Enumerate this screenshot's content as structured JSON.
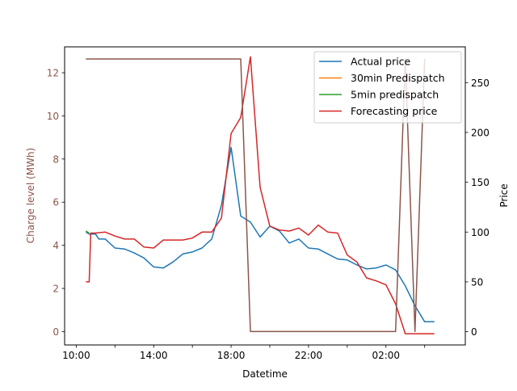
{
  "chart_data": {
    "type": "line",
    "xlabel": "Datetime",
    "ylabel_left": "Charge level (MWh)",
    "ylabel_right": "Price",
    "x_unit": "hours since 00:00 (day 1)",
    "x_ticks": [
      {
        "x": 10,
        "label": "10:00"
      },
      {
        "x": 12,
        "label": ""
      },
      {
        "x": 14,
        "label": "14:00"
      },
      {
        "x": 16,
        "label": ""
      },
      {
        "x": 18,
        "label": "18:00"
      },
      {
        "x": 20,
        "label": ""
      },
      {
        "x": 22,
        "label": "22:00"
      },
      {
        "x": 24,
        "label": ""
      },
      {
        "x": 26,
        "label": "02:00"
      },
      {
        "x": 28,
        "label": ""
      }
    ],
    "xlim": [
      9.4,
      30.1
    ],
    "ylim_left": [
      -0.62,
      13.2
    ],
    "ylim_right": [
      -13.3,
      285.9
    ],
    "left_ticks": [
      0,
      2,
      4,
      6,
      8,
      10,
      12
    ],
    "right_ticks": [
      0,
      50,
      100,
      150,
      200,
      250
    ],
    "legend_position": "top-right",
    "legend": [
      "Actual price",
      "30min Predispatch",
      "5min predispatch",
      "Forecasting price"
    ],
    "colors": {
      "actual": "#1f77b4",
      "pd30": "#ff7f0e",
      "pd5": "#2ca02c",
      "forecast": "#d62728",
      "charge": "#8c564b",
      "left_axis_text": "#8c564b"
    },
    "series": [
      {
        "name": "Actual price",
        "axis": "right",
        "x": [
          10.5,
          10.67,
          11,
          11.17,
          11.5,
          12,
          12.5,
          13,
          13.5,
          14,
          14.5,
          15,
          15.5,
          16,
          16.5,
          17,
          17.5,
          18,
          18.5,
          19,
          19.5,
          20,
          20.5,
          21,
          21.5,
          22,
          22.5,
          23,
          23.5,
          24,
          24.5,
          25,
          25.5,
          26,
          26.5,
          27,
          27.5,
          28,
          28.5
        ],
        "y": [
          100,
          98,
          98,
          93,
          93,
          84,
          83,
          79,
          74,
          65,
          64,
          70,
          78,
          80,
          84,
          93,
          127,
          185,
          116,
          110,
          95,
          106,
          101,
          89,
          93,
          84,
          83,
          78,
          73,
          72,
          67,
          63,
          64,
          67,
          62,
          46,
          26,
          10,
          10
        ]
      },
      {
        "name": "30min Predispatch",
        "axis": "right",
        "x": [
          10.5,
          10.67
        ],
        "y": [
          101,
          99
        ]
      },
      {
        "name": "5min predispatch",
        "axis": "right",
        "x": [
          10.5,
          10.67
        ],
        "y": [
          101,
          99
        ]
      },
      {
        "name": "Forecasting price",
        "axis": "right",
        "x": [
          10.5,
          10.67,
          10.75,
          11,
          11.5,
          12,
          12.5,
          13,
          13.5,
          14,
          14.5,
          15,
          15.5,
          16,
          16.5,
          17,
          17.5,
          18,
          18.5,
          19,
          19.5,
          20,
          20.5,
          21,
          21.5,
          22,
          22.5,
          23,
          23.5,
          24,
          24.5,
          25,
          25.5,
          26,
          26.5,
          27,
          27.5,
          28,
          28.5
        ],
        "y": [
          50,
          50,
          99,
          99,
          100,
          96,
          93,
          93,
          85,
          84,
          92,
          92,
          92,
          94,
          100,
          100,
          114,
          199,
          215,
          276,
          145,
          106,
          102,
          101,
          104,
          97,
          107,
          100,
          99,
          77,
          70,
          54,
          51,
          47,
          28,
          -2,
          -2,
          -2,
          -2
        ]
      },
      {
        "name": "Charge level",
        "axis": "left",
        "x": [
          10.5,
          18.5,
          19.0,
          26.5,
          27.0,
          27.5,
          28.0
        ],
        "y": [
          12.64,
          12.64,
          0.0,
          0.0,
          12.64,
          0.0,
          12.64
        ]
      }
    ]
  }
}
